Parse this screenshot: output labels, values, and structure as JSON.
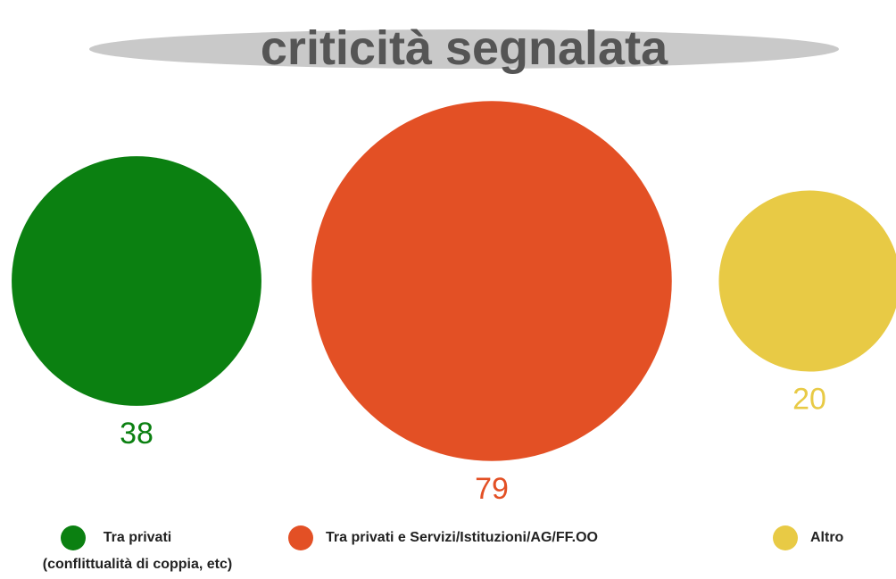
{
  "chart_data": {
    "type": "bubble",
    "title": "criticità segnalata",
    "categories": [
      "Tra privati\n(conflittualità di coppia, etc)",
      "Tra privati e Servizi/Istituzioni/AG/FF.OO",
      "Altro"
    ],
    "values": [
      38,
      79,
      20
    ],
    "colors": [
      "#0b8011",
      "#e35025",
      "#e8ca45"
    ],
    "legend": "bottom"
  }
}
